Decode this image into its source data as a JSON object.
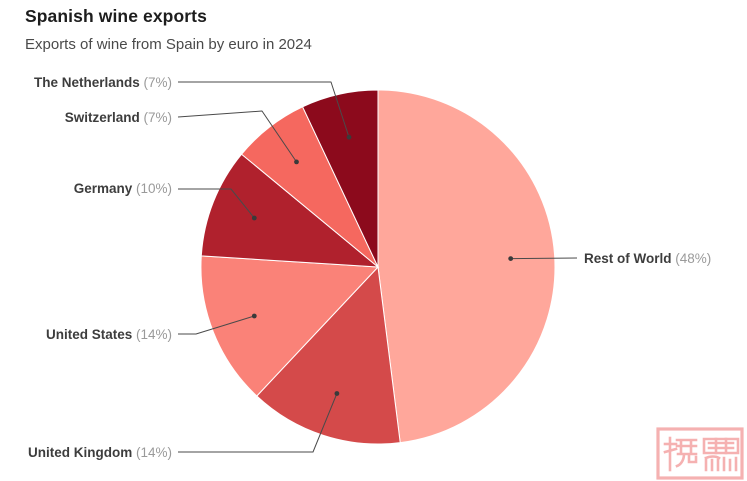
{
  "header": {
    "title": "Spanish wine exports",
    "subtitle": "Exports of wine from Spain by euro in 2024"
  },
  "chart_data": {
    "type": "pie",
    "title": "Spanish wine exports",
    "subtitle": "Exports of wine from Spain by euro in 2024",
    "unit": "percent",
    "start_angle_deg": 0,
    "direction": "clockwise",
    "label_format": "{label} ({value}%)",
    "slices": [
      {
        "label": "Rest of World",
        "value": 48,
        "color": "#FFA79B"
      },
      {
        "label": "United Kingdom",
        "value": 14,
        "color": "#D44A4A"
      },
      {
        "label": "United States",
        "value": 14,
        "color": "#FA8278"
      },
      {
        "label": "Germany",
        "value": 10,
        "color": "#B0212D"
      },
      {
        "label": "Switzerland",
        "value": 7,
        "color": "#F5685F"
      },
      {
        "label": "The Netherlands",
        "value": 7,
        "color": "#8C0A1C"
      }
    ],
    "colors": {
      "label_text": "#3d3d3d",
      "percent_text": "#9a9a9a",
      "leader_line": "#4a4a4a",
      "slice_border": "#ffffff"
    }
  },
  "watermark": {
    "name": "red-seal-stamp",
    "color": "#F5ADAD"
  }
}
